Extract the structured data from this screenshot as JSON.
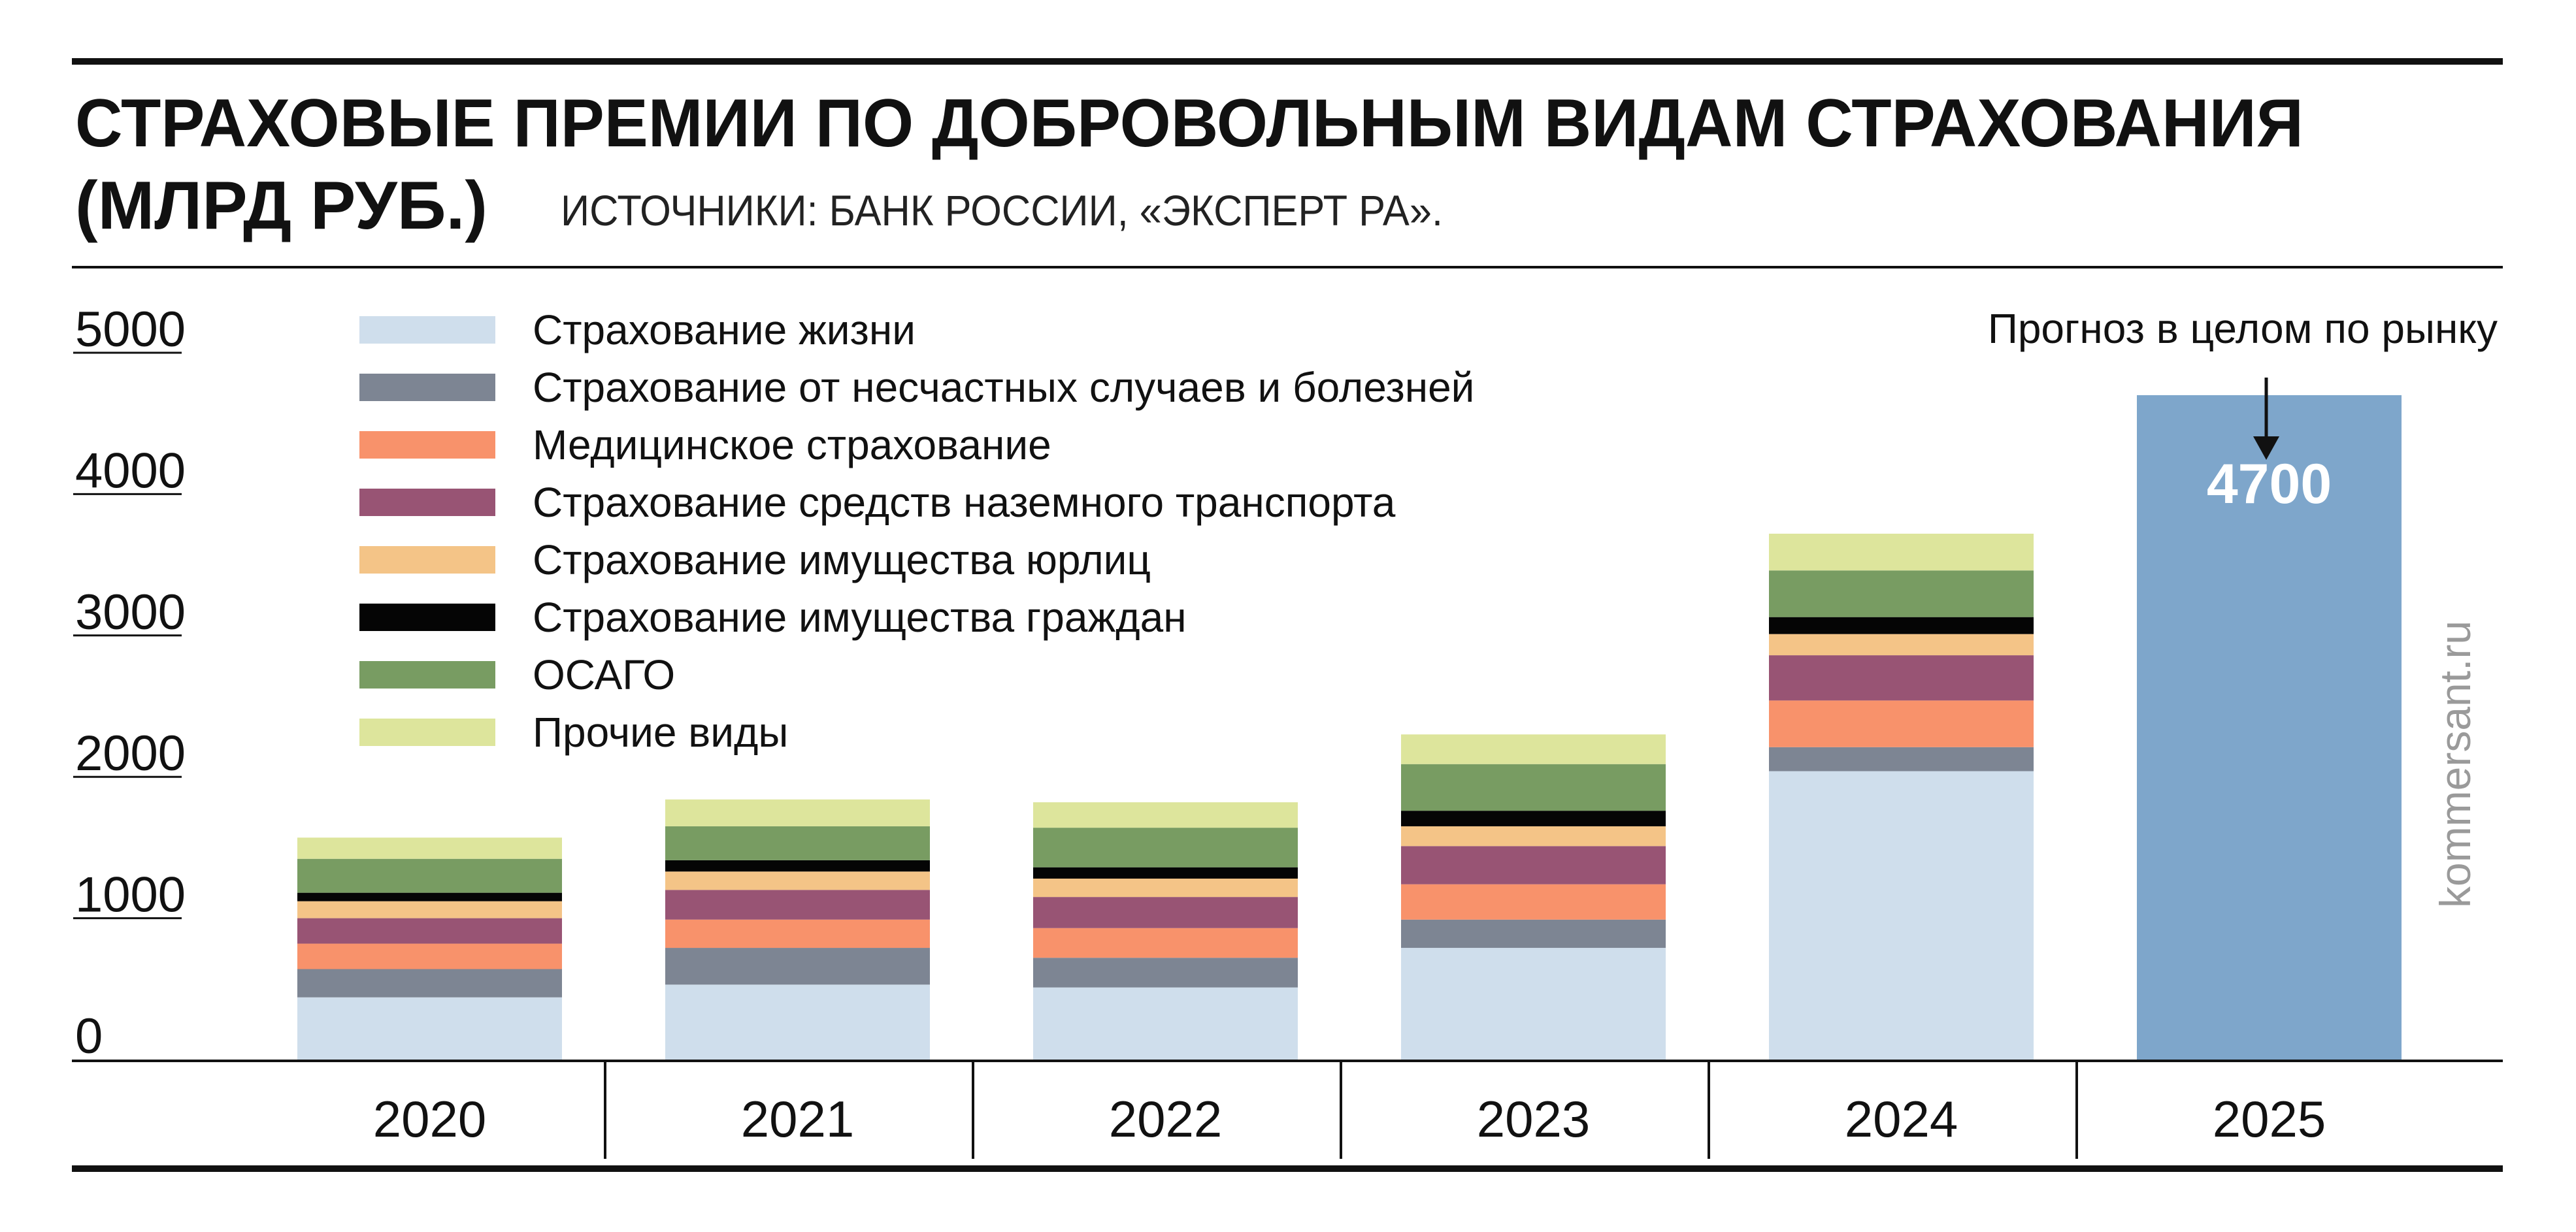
{
  "title_line1": "СТРАХОВЫЕ ПРЕМИИ ПО ДОБРОВОЛЬНЫМ ВИДАМ СТРАХОВАНИЯ",
  "title_line2": "(МЛРД РУБ.)",
  "source": "ИСТОЧНИКИ: БАНК РОССИИ, «ЭКСПЕРТ РА».",
  "watermark": "kommersant.ru",
  "forecast_label": "Прогноз в целом по рынку",
  "colors": {
    "life": "#cfdeec",
    "accident": "#7d8593",
    "medical": "#f8926b",
    "vehicle": "#985474",
    "property_corp": "#f4c487",
    "property_ind": "#050505",
    "osago": "#789c62",
    "other": "#dde59c",
    "forecast": "#7ea6cb"
  },
  "chart_data": {
    "type": "bar",
    "stacked": true,
    "categories": [
      "2020",
      "2021",
      "2022",
      "2023",
      "2024",
      "2025"
    ],
    "ylim": [
      0,
      5000
    ],
    "yticks": [
      0,
      1000,
      2000,
      3000,
      4000,
      5000
    ],
    "ytick_labels": [
      "0",
      "1000",
      "2000",
      "3000",
      "4000",
      "5000"
    ],
    "legend_position": "top-left",
    "series": [
      {
        "name": "Страхование жизни",
        "color_key": "life",
        "values": [
          440,
          530,
          510,
          790,
          2040,
          null
        ]
      },
      {
        "name": "Страхование от несчастных случаев и болезней",
        "color_key": "accident",
        "values": [
          200,
          260,
          210,
          200,
          170,
          null
        ]
      },
      {
        "name": "Медицинское страхование",
        "color_key": "medical",
        "values": [
          180,
          200,
          210,
          250,
          330,
          null
        ]
      },
      {
        "name": "Страхование средств наземного транспорта",
        "color_key": "vehicle",
        "values": [
          180,
          210,
          220,
          270,
          320,
          null
        ]
      },
      {
        "name": "Страхование имущества юрлиц",
        "color_key": "property_corp",
        "values": [
          120,
          130,
          130,
          140,
          150,
          null
        ]
      },
      {
        "name": "Страхование имущества граждан",
        "color_key": "property_ind",
        "values": [
          60,
          80,
          80,
          110,
          120,
          null
        ]
      },
      {
        "name": "ОСАГО",
        "color_key": "osago",
        "values": [
          240,
          240,
          280,
          330,
          330,
          null
        ]
      },
      {
        "name": "Прочие виды",
        "color_key": "other",
        "values": [
          150,
          190,
          180,
          210,
          260,
          null
        ]
      }
    ],
    "forecast": {
      "category": "2025",
      "value": 4700,
      "label": "4700",
      "color_key": "forecast"
    }
  }
}
